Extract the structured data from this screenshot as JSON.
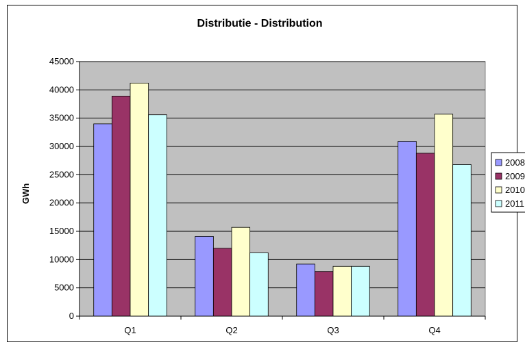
{
  "chart_data": {
    "type": "bar",
    "title": "Distributie - Distribution",
    "xlabel": "",
    "ylabel": "GWh",
    "categories": [
      "Q1",
      "Q2",
      "Q3",
      "Q4"
    ],
    "ylim": [
      0,
      45000
    ],
    "yticks": [
      0,
      5000,
      10000,
      15000,
      20000,
      25000,
      30000,
      35000,
      40000,
      45000
    ],
    "grid": true,
    "legend": "right",
    "plot_background": "#c0c0c0",
    "series": [
      {
        "name": "2008",
        "color": "#9999ff",
        "values": [
          34000,
          14100,
          9200,
          30900
        ]
      },
      {
        "name": "2009",
        "color": "#993366",
        "values": [
          38900,
          12000,
          7900,
          28800
        ]
      },
      {
        "name": "2010",
        "color": "#ffffcc",
        "values": [
          41200,
          15700,
          8800,
          35700
        ]
      },
      {
        "name": "2011",
        "color": "#ccffff",
        "values": [
          35600,
          11200,
          8800,
          26800
        ]
      }
    ]
  }
}
